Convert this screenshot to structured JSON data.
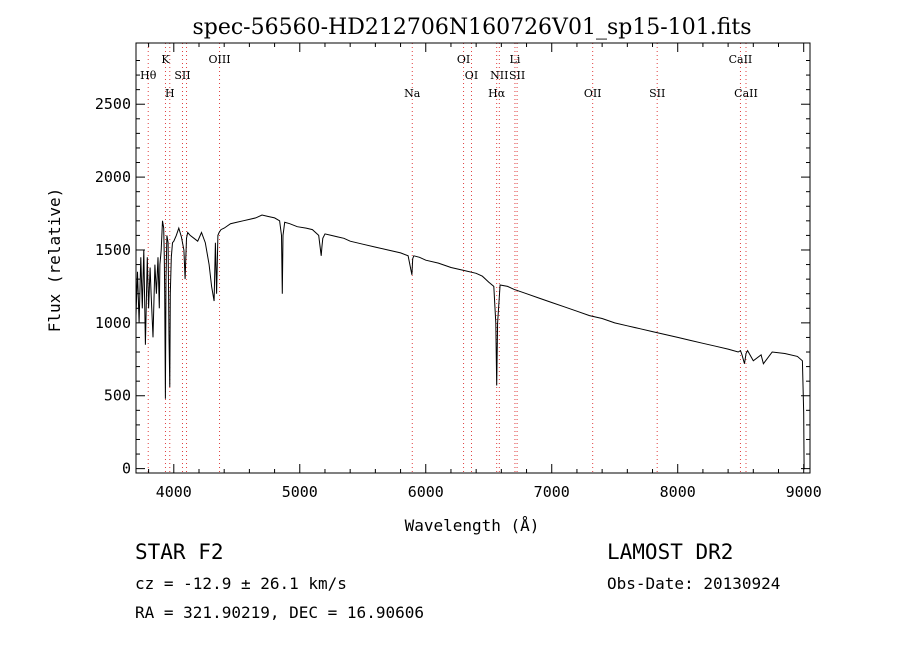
{
  "chart_data": {
    "type": "line",
    "title": "spec-56560-HD212706N160726V01_sp15-101.fits",
    "xlabel": "Wavelength (Å)",
    "ylabel": "Flux (relative)",
    "xlim": [
      3700,
      9050
    ],
    "ylim": [
      -30,
      2920
    ],
    "x_ticks": [
      4000,
      5000,
      6000,
      7000,
      8000,
      9000
    ],
    "y_ticks": [
      0,
      500,
      1000,
      1500,
      2000,
      2500
    ],
    "grid": false,
    "series": [
      {
        "x": [
          3700,
          3712,
          3725,
          3738,
          3750,
          3762,
          3775,
          3790,
          3800,
          3812,
          3820,
          3835,
          3850,
          3862,
          3875,
          3885,
          3890,
          3900,
          3910,
          3920,
          3925,
          3928,
          3933,
          3938,
          3945,
          3955,
          3962,
          3968,
          3972,
          3980,
          3990,
          4000,
          4020,
          4040,
          4060,
          4080,
          4090,
          4101,
          4110,
          4130,
          4160,
          4190,
          4220,
          4250,
          4280,
          4300,
          4320,
          4330,
          4340,
          4350,
          4360,
          4375,
          4400,
          4450,
          4500,
          4550,
          4600,
          4650,
          4700,
          4750,
          4800,
          4840,
          4855,
          4861,
          4867,
          4880,
          4920,
          4980,
          5050,
          5100,
          5150,
          5170,
          5176,
          5183,
          5200,
          5250,
          5300,
          5350,
          5400,
          5450,
          5500,
          5600,
          5700,
          5800,
          5860,
          5890,
          5896,
          5905,
          5950,
          6000,
          6100,
          6200,
          6300,
          6400,
          6450,
          6500,
          6540,
          6556,
          6563,
          6570,
          6590,
          6650,
          6700,
          6800,
          6900,
          7000,
          7100,
          7200,
          7300,
          7400,
          7500,
          7600,
          7700,
          7800,
          7900,
          8000,
          8100,
          8200,
          8300,
          8400,
          8480,
          8498,
          8510,
          8530,
          8542,
          8555,
          8600,
          8662,
          8680,
          8750,
          8850,
          8950,
          8990,
          9000,
          9003,
          9010
        ],
        "y": [
          1050,
          1350,
          1000,
          1450,
          1100,
          1500,
          850,
          1450,
          1100,
          1380,
          1200,
          900,
          1400,
          1200,
          1450,
          1100,
          1400,
          1500,
          1700,
          1650,
          1450,
          1200,
          480,
          1300,
          1600,
          1550,
          900,
          560,
          1200,
          1450,
          1550,
          1560,
          1600,
          1650,
          1590,
          1500,
          1300,
          1580,
          1620,
          1600,
          1580,
          1560,
          1620,
          1550,
          1400,
          1250,
          1150,
          1550,
          1200,
          1600,
          1620,
          1640,
          1650,
          1680,
          1690,
          1700,
          1710,
          1720,
          1740,
          1730,
          1720,
          1700,
          1600,
          1200,
          1600,
          1690,
          1680,
          1660,
          1650,
          1640,
          1600,
          1460,
          1520,
          1580,
          1610,
          1600,
          1590,
          1580,
          1560,
          1550,
          1540,
          1520,
          1500,
          1480,
          1460,
          1330,
          1440,
          1460,
          1450,
          1430,
          1410,
          1380,
          1360,
          1340,
          1320,
          1280,
          1250,
          1000,
          570,
          1000,
          1260,
          1250,
          1230,
          1200,
          1170,
          1140,
          1110,
          1080,
          1050,
          1030,
          1000,
          980,
          960,
          940,
          920,
          900,
          880,
          860,
          840,
          820,
          800,
          810,
          780,
          720,
          790,
          810,
          740,
          780,
          720,
          800,
          790,
          770,
          740,
          380,
          0,
          0
        ]
      }
    ],
    "line_markers": [
      {
        "label": "Hθ",
        "x": 3797,
        "row": 2
      },
      {
        "label": "K",
        "x": 3934,
        "row": 1
      },
      {
        "label": "H",
        "x": 3968,
        "row": 3
      },
      {
        "label": "SII",
        "x": 4069,
        "row": 2
      },
      {
        "label": "OIII",
        "x": 4363,
        "row": 1
      },
      {
        "label": "Na",
        "x": 5893,
        "row": 3
      },
      {
        "label": "OI",
        "x": 6300,
        "row": 1
      },
      {
        "label": "OI",
        "x": 6363,
        "row": 2
      },
      {
        "label": "Li",
        "x": 6708,
        "row": 1
      },
      {
        "label": "NII",
        "x": 6584,
        "row": 2
      },
      {
        "label": "SII",
        "x": 6725,
        "row": 2
      },
      {
        "label": "Hα",
        "x": 6563,
        "row": 3
      },
      {
        "label": "OII",
        "x": 7325,
        "row": 3
      },
      {
        "label": "SII",
        "x": 7837,
        "row": 3
      },
      {
        "label": "CaII",
        "x": 8498,
        "row": 1
      },
      {
        "label": "CaII",
        "x": 8542,
        "row": 3
      }
    ],
    "dotted_lines_x": [
      3797,
      3934,
      3968,
      4069,
      4101,
      4363,
      5893,
      6300,
      6363,
      6563,
      6584,
      6708,
      6725,
      7325,
      7837,
      8498,
      8542
    ]
  },
  "footer": {
    "object": "STAR    F2",
    "survey": "LAMOST DR2",
    "redshift": "cz = -12.9 ± 26.1 km/s",
    "obs_date": "Obs-Date: 20130924",
    "coords": "RA = 321.90219, DEC =  16.90606"
  }
}
